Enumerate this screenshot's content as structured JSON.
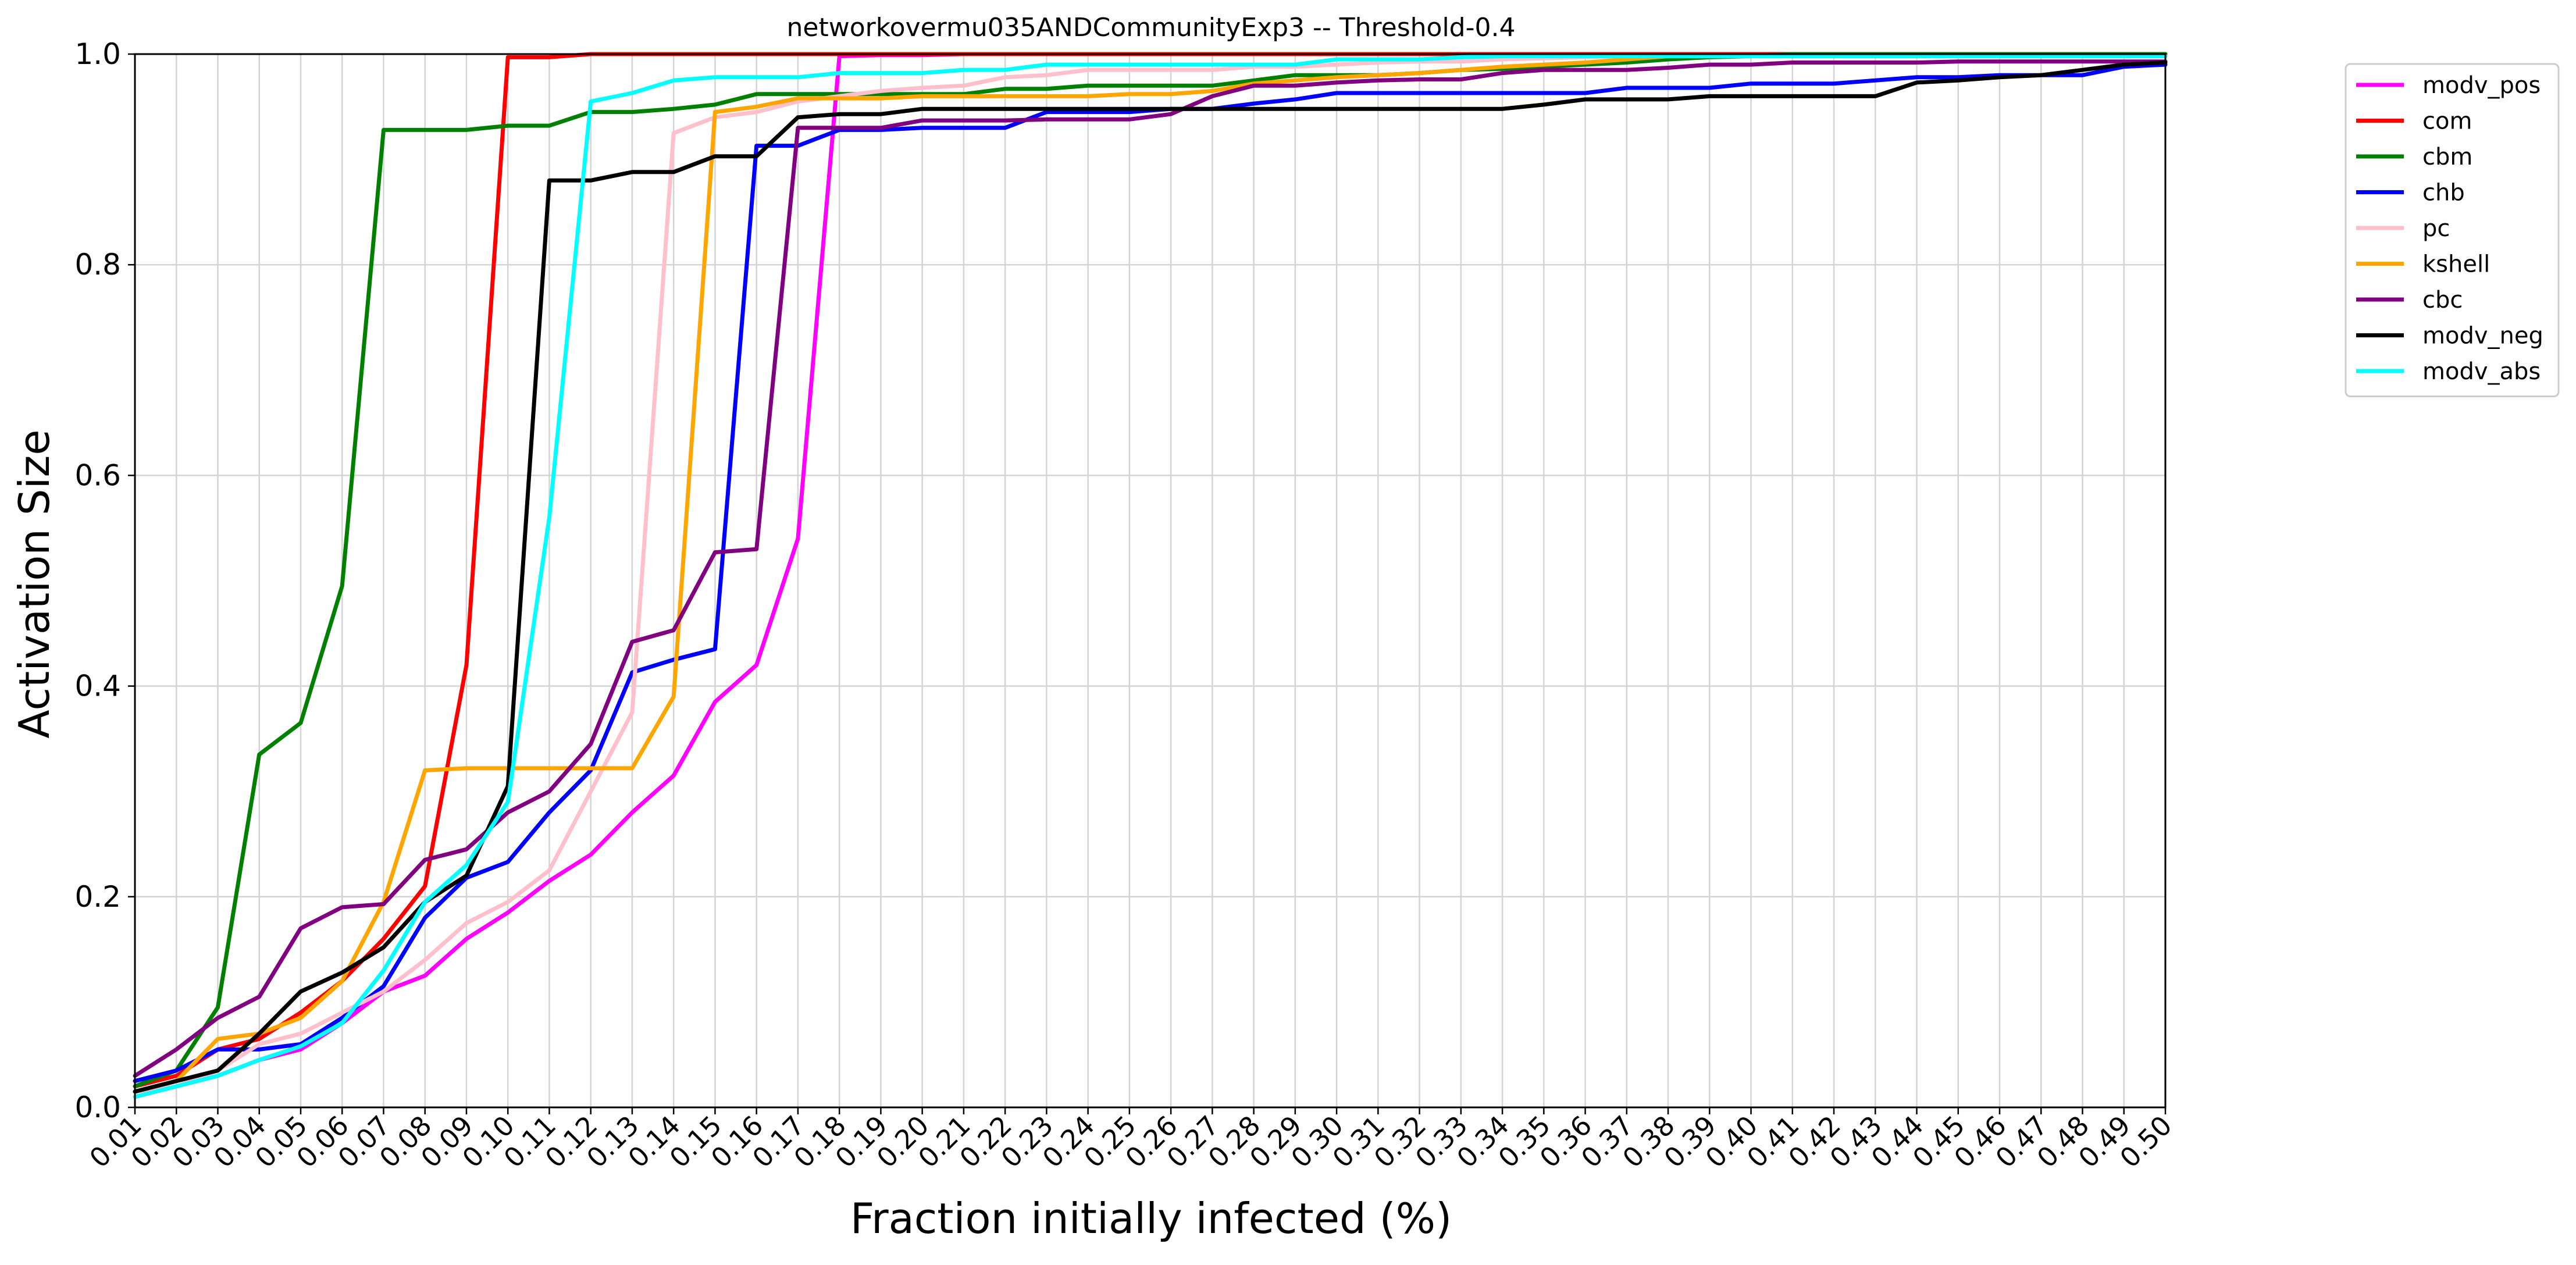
{
  "chart_data": {
    "type": "line",
    "title": "networkovermu035ANDCommunityExp3 -- Threshold-0.4",
    "xlabel": "Fraction initially infected (%)",
    "ylabel": "Activation Size",
    "x": [
      "0.01",
      "0.02",
      "0.03",
      "0.04",
      "0.05",
      "0.06",
      "0.07",
      "0.08",
      "0.09",
      "0.10",
      "0.11",
      "0.12",
      "0.13",
      "0.14",
      "0.15",
      "0.16",
      "0.17",
      "0.18",
      "0.19",
      "0.20",
      "0.21",
      "0.22",
      "0.23",
      "0.24",
      "0.25",
      "0.26",
      "0.27",
      "0.28",
      "0.29",
      "0.30",
      "0.31",
      "0.32",
      "0.33",
      "0.34",
      "0.35",
      "0.36",
      "0.37",
      "0.38",
      "0.39",
      "0.40",
      "0.41",
      "0.42",
      "0.43",
      "0.44",
      "0.45",
      "0.46",
      "0.47",
      "0.48",
      "0.49",
      "0.50"
    ],
    "xlim": [
      0.01,
      0.5
    ],
    "ylim": [
      0.0,
      1.0
    ],
    "yticks": [
      "0.0",
      "0.2",
      "0.4",
      "0.6",
      "0.8",
      "1.0"
    ],
    "grid": true,
    "legend_position": "outside-right-top",
    "series": [
      {
        "name": "modv_pos",
        "color": "#ff00ff",
        "values": [
          0.01,
          0.02,
          0.03,
          0.045,
          0.055,
          0.08,
          0.11,
          0.125,
          0.16,
          0.185,
          0.215,
          0.24,
          0.28,
          0.315,
          0.385,
          0.42,
          0.54,
          0.998,
          0.999,
          0.999,
          1.0,
          1.0,
          1.0,
          1.0,
          1.0,
          1.0,
          1.0,
          1.0,
          1.0,
          1.0,
          1.0,
          1.0,
          1.0,
          1.0,
          1.0,
          1.0,
          1.0,
          1.0,
          1.0,
          1.0,
          1.0,
          1.0,
          1.0,
          1.0,
          1.0,
          1.0,
          1.0,
          1.0,
          1.0,
          1.0
        ]
      },
      {
        "name": "com",
        "color": "#ff0000",
        "values": [
          0.02,
          0.03,
          0.055,
          0.065,
          0.09,
          0.12,
          0.16,
          0.21,
          0.42,
          0.997,
          0.997,
          1.0,
          1.0,
          1.0,
          1.0,
          1.0,
          1.0,
          1.0,
          1.0,
          1.0,
          1.0,
          1.0,
          1.0,
          1.0,
          1.0,
          1.0,
          1.0,
          1.0,
          1.0,
          1.0,
          1.0,
          1.0,
          1.0,
          1.0,
          1.0,
          1.0,
          1.0,
          1.0,
          1.0,
          1.0,
          1.0,
          1.0,
          1.0,
          1.0,
          1.0,
          1.0,
          1.0,
          1.0,
          1.0,
          1.0
        ]
      },
      {
        "name": "cbm",
        "color": "#008000",
        "values": [
          0.02,
          0.035,
          0.095,
          0.335,
          0.365,
          0.495,
          0.928,
          0.928,
          0.928,
          0.932,
          0.932,
          0.945,
          0.945,
          0.948,
          0.952,
          0.962,
          0.962,
          0.962,
          0.962,
          0.962,
          0.962,
          0.967,
          0.967,
          0.97,
          0.97,
          0.97,
          0.97,
          0.975,
          0.98,
          0.98,
          0.98,
          0.982,
          0.985,
          0.986,
          0.988,
          0.99,
          0.992,
          0.995,
          0.997,
          0.998,
          1.0,
          1.0,
          1.0,
          1.0,
          1.0,
          1.0,
          1.0,
          1.0,
          1.0,
          1.0
        ]
      },
      {
        "name": "chb",
        "color": "#0000ff",
        "values": [
          0.025,
          0.035,
          0.055,
          0.055,
          0.06,
          0.085,
          0.115,
          0.18,
          0.218,
          0.233,
          0.28,
          0.32,
          0.413,
          0.425,
          0.435,
          0.913,
          0.913,
          0.928,
          0.928,
          0.93,
          0.93,
          0.93,
          0.945,
          0.945,
          0.945,
          0.948,
          0.948,
          0.953,
          0.957,
          0.963,
          0.963,
          0.963,
          0.963,
          0.963,
          0.963,
          0.963,
          0.968,
          0.968,
          0.968,
          0.972,
          0.972,
          0.972,
          0.975,
          0.978,
          0.978,
          0.98,
          0.98,
          0.98,
          0.988,
          0.99
        ]
      },
      {
        "name": "pc",
        "color": "#ffc0cb",
        "values": [
          0.015,
          0.02,
          0.035,
          0.06,
          0.07,
          0.09,
          0.11,
          0.14,
          0.175,
          0.195,
          0.225,
          0.3,
          0.375,
          0.925,
          0.94,
          0.945,
          0.955,
          0.96,
          0.965,
          0.968,
          0.97,
          0.978,
          0.98,
          0.985,
          0.985,
          0.985,
          0.985,
          0.988,
          0.988,
          0.99,
          0.992,
          0.993,
          0.993,
          0.995,
          0.996,
          0.997,
          0.998,
          0.998,
          0.998,
          0.998,
          0.998,
          0.998,
          0.998,
          0.998,
          0.998,
          0.998,
          0.998,
          0.998,
          0.998,
          0.998
        ]
      },
      {
        "name": "kshell",
        "color": "#ffa500",
        "values": [
          0.015,
          0.025,
          0.065,
          0.07,
          0.085,
          0.12,
          0.195,
          0.32,
          0.322,
          0.322,
          0.322,
          0.322,
          0.322,
          0.39,
          0.945,
          0.95,
          0.958,
          0.958,
          0.958,
          0.96,
          0.96,
          0.96,
          0.96,
          0.96,
          0.962,
          0.962,
          0.965,
          0.972,
          0.975,
          0.978,
          0.98,
          0.982,
          0.985,
          0.988,
          0.99,
          0.992,
          0.995,
          0.998,
          0.998,
          0.998,
          0.998,
          0.998,
          0.998,
          0.998,
          0.998,
          0.998,
          0.998,
          0.998,
          0.998,
          0.998
        ]
      },
      {
        "name": "cbc",
        "color": "#800080",
        "values": [
          0.03,
          0.055,
          0.085,
          0.105,
          0.17,
          0.19,
          0.193,
          0.235,
          0.245,
          0.28,
          0.3,
          0.345,
          0.442,
          0.453,
          0.527,
          0.53,
          0.93,
          0.93,
          0.93,
          0.937,
          0.937,
          0.937,
          0.938,
          0.938,
          0.938,
          0.943,
          0.96,
          0.97,
          0.97,
          0.973,
          0.975,
          0.976,
          0.976,
          0.982,
          0.985,
          0.985,
          0.985,
          0.987,
          0.99,
          0.99,
          0.992,
          0.992,
          0.992,
          0.992,
          0.993,
          0.993,
          0.993,
          0.993,
          0.993,
          0.993
        ]
      },
      {
        "name": "modv_neg",
        "color": "#000000",
        "values": [
          0.015,
          0.025,
          0.035,
          0.07,
          0.11,
          0.128,
          0.152,
          0.195,
          0.22,
          0.305,
          0.88,
          0.88,
          0.888,
          0.888,
          0.903,
          0.903,
          0.94,
          0.943,
          0.943,
          0.948,
          0.948,
          0.948,
          0.948,
          0.948,
          0.948,
          0.948,
          0.948,
          0.948,
          0.948,
          0.948,
          0.948,
          0.948,
          0.948,
          0.948,
          0.952,
          0.957,
          0.957,
          0.957,
          0.96,
          0.96,
          0.96,
          0.96,
          0.96,
          0.973,
          0.975,
          0.978,
          0.98,
          0.985,
          0.99,
          0.992
        ]
      },
      {
        "name": "modv_abs",
        "color": "#00ffff",
        "values": [
          0.01,
          0.02,
          0.03,
          0.045,
          0.058,
          0.08,
          0.13,
          0.195,
          0.23,
          0.29,
          0.56,
          0.955,
          0.963,
          0.975,
          0.978,
          0.978,
          0.978,
          0.982,
          0.982,
          0.982,
          0.985,
          0.985,
          0.99,
          0.99,
          0.99,
          0.99,
          0.99,
          0.99,
          0.99,
          0.995,
          0.995,
          0.995,
          0.997,
          0.998,
          0.998,
          0.998,
          0.998,
          0.998,
          0.998,
          0.998,
          0.998,
          0.998,
          0.998,
          0.998,
          0.998,
          0.998,
          0.998,
          0.998,
          0.998,
          0.998
        ]
      }
    ]
  }
}
